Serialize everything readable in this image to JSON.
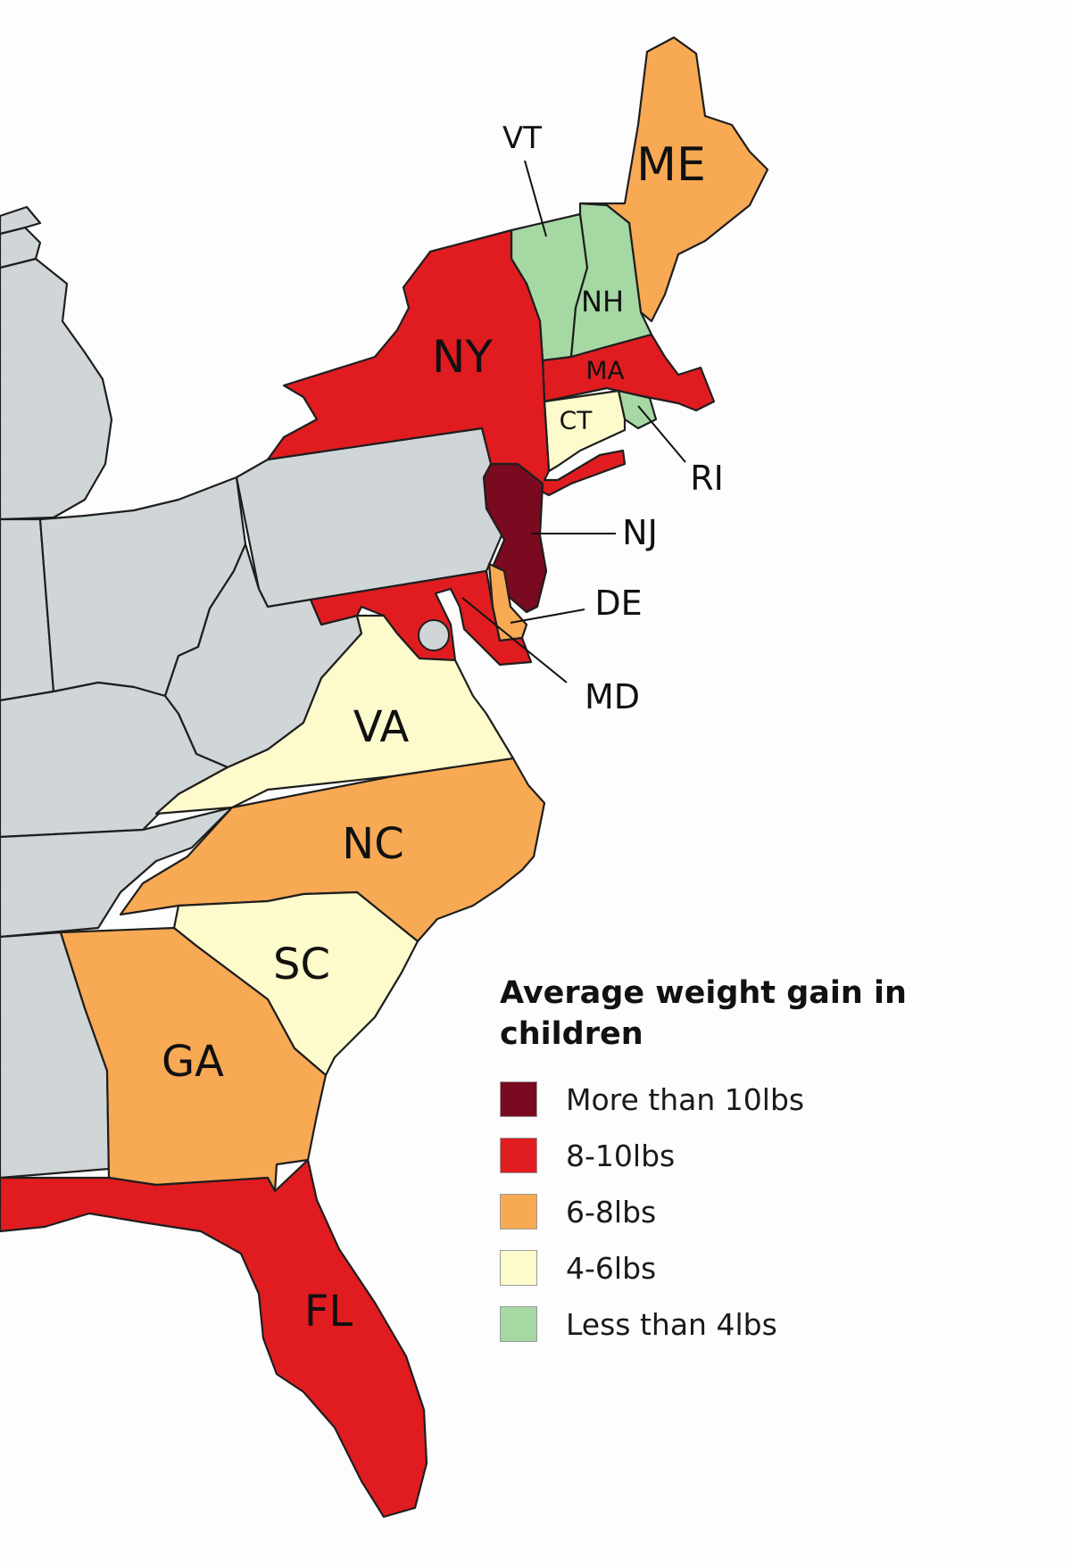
{
  "legend": {
    "title": "Average weight gain in children",
    "items": [
      {
        "label": "More than 10lbs",
        "color": "#7a0a1f"
      },
      {
        "label": "8-10lbs",
        "color": "#e01c20"
      },
      {
        "label": "6-8lbs",
        "color": "#f8a954"
      },
      {
        "label": "4-6lbs",
        "color": "#fdfbcb"
      },
      {
        "label": "Less than 4lbs",
        "color": "#a6d8a4"
      }
    ]
  },
  "no_data_color": "#d0d5d8",
  "states": {
    "ME": {
      "label": "ME",
      "category": 2
    },
    "VT": {
      "label": "VT",
      "category": 4
    },
    "NH": {
      "label": "NH",
      "category": 4
    },
    "MA": {
      "label": "MA",
      "category": 1
    },
    "RI": {
      "label": "RI",
      "category": 4
    },
    "CT": {
      "label": "CT",
      "category": 3
    },
    "NY": {
      "label": "NY",
      "category": 1
    },
    "NJ": {
      "label": "NJ",
      "category": 0
    },
    "DE": {
      "label": "DE",
      "category": 2
    },
    "MD": {
      "label": "MD",
      "category": 1
    },
    "VA": {
      "label": "VA",
      "category": 3
    },
    "NC": {
      "label": "NC",
      "category": 2
    },
    "SC": {
      "label": "SC",
      "category": 3
    },
    "GA": {
      "label": "GA",
      "category": 2
    },
    "FL": {
      "label": "FL",
      "category": 1
    }
  }
}
